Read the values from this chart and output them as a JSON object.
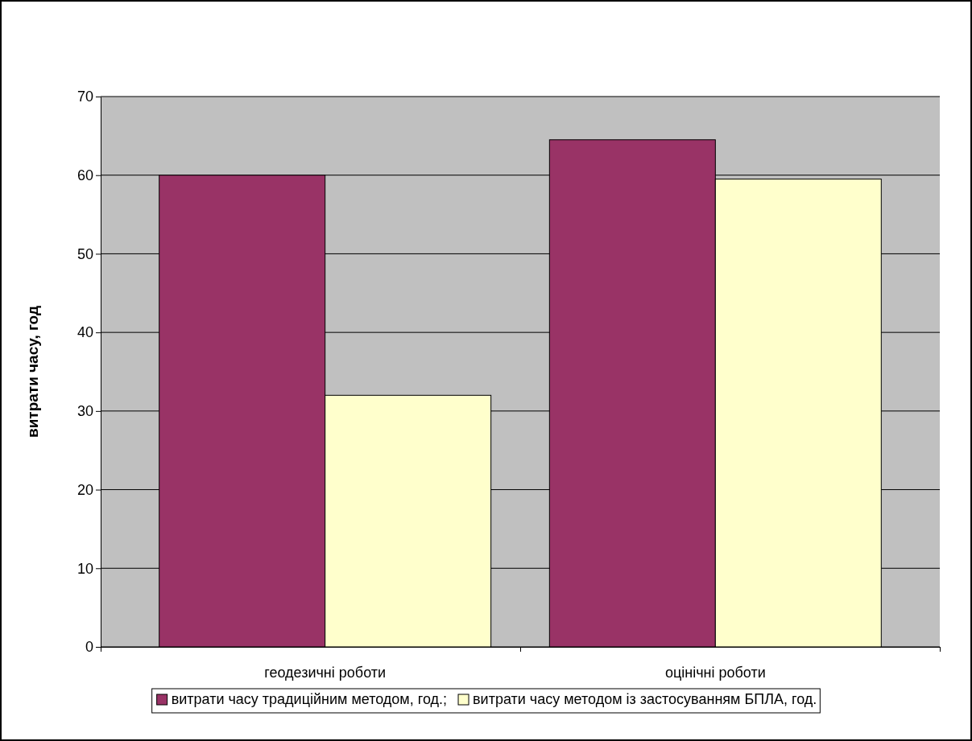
{
  "chart_data": {
    "type": "bar",
    "ylabel": "витрати часу, год",
    "categories": [
      "геодезичні роботи",
      "оцінічні роботи"
    ],
    "series": [
      {
        "name": "витрати часу традиційним методом, год.;",
        "color": "#993366",
        "values": [
          60,
          64.5
        ]
      },
      {
        "name": "витрати часу методом із застосуванням БПЛА, год.",
        "color": "#ffffcc",
        "values": [
          32,
          59.5
        ]
      }
    ],
    "ylim": [
      0,
      70
    ],
    "yticks": [
      0,
      10,
      20,
      30,
      40,
      50,
      60,
      70
    ],
    "grid": "y",
    "legend": "bottom"
  }
}
